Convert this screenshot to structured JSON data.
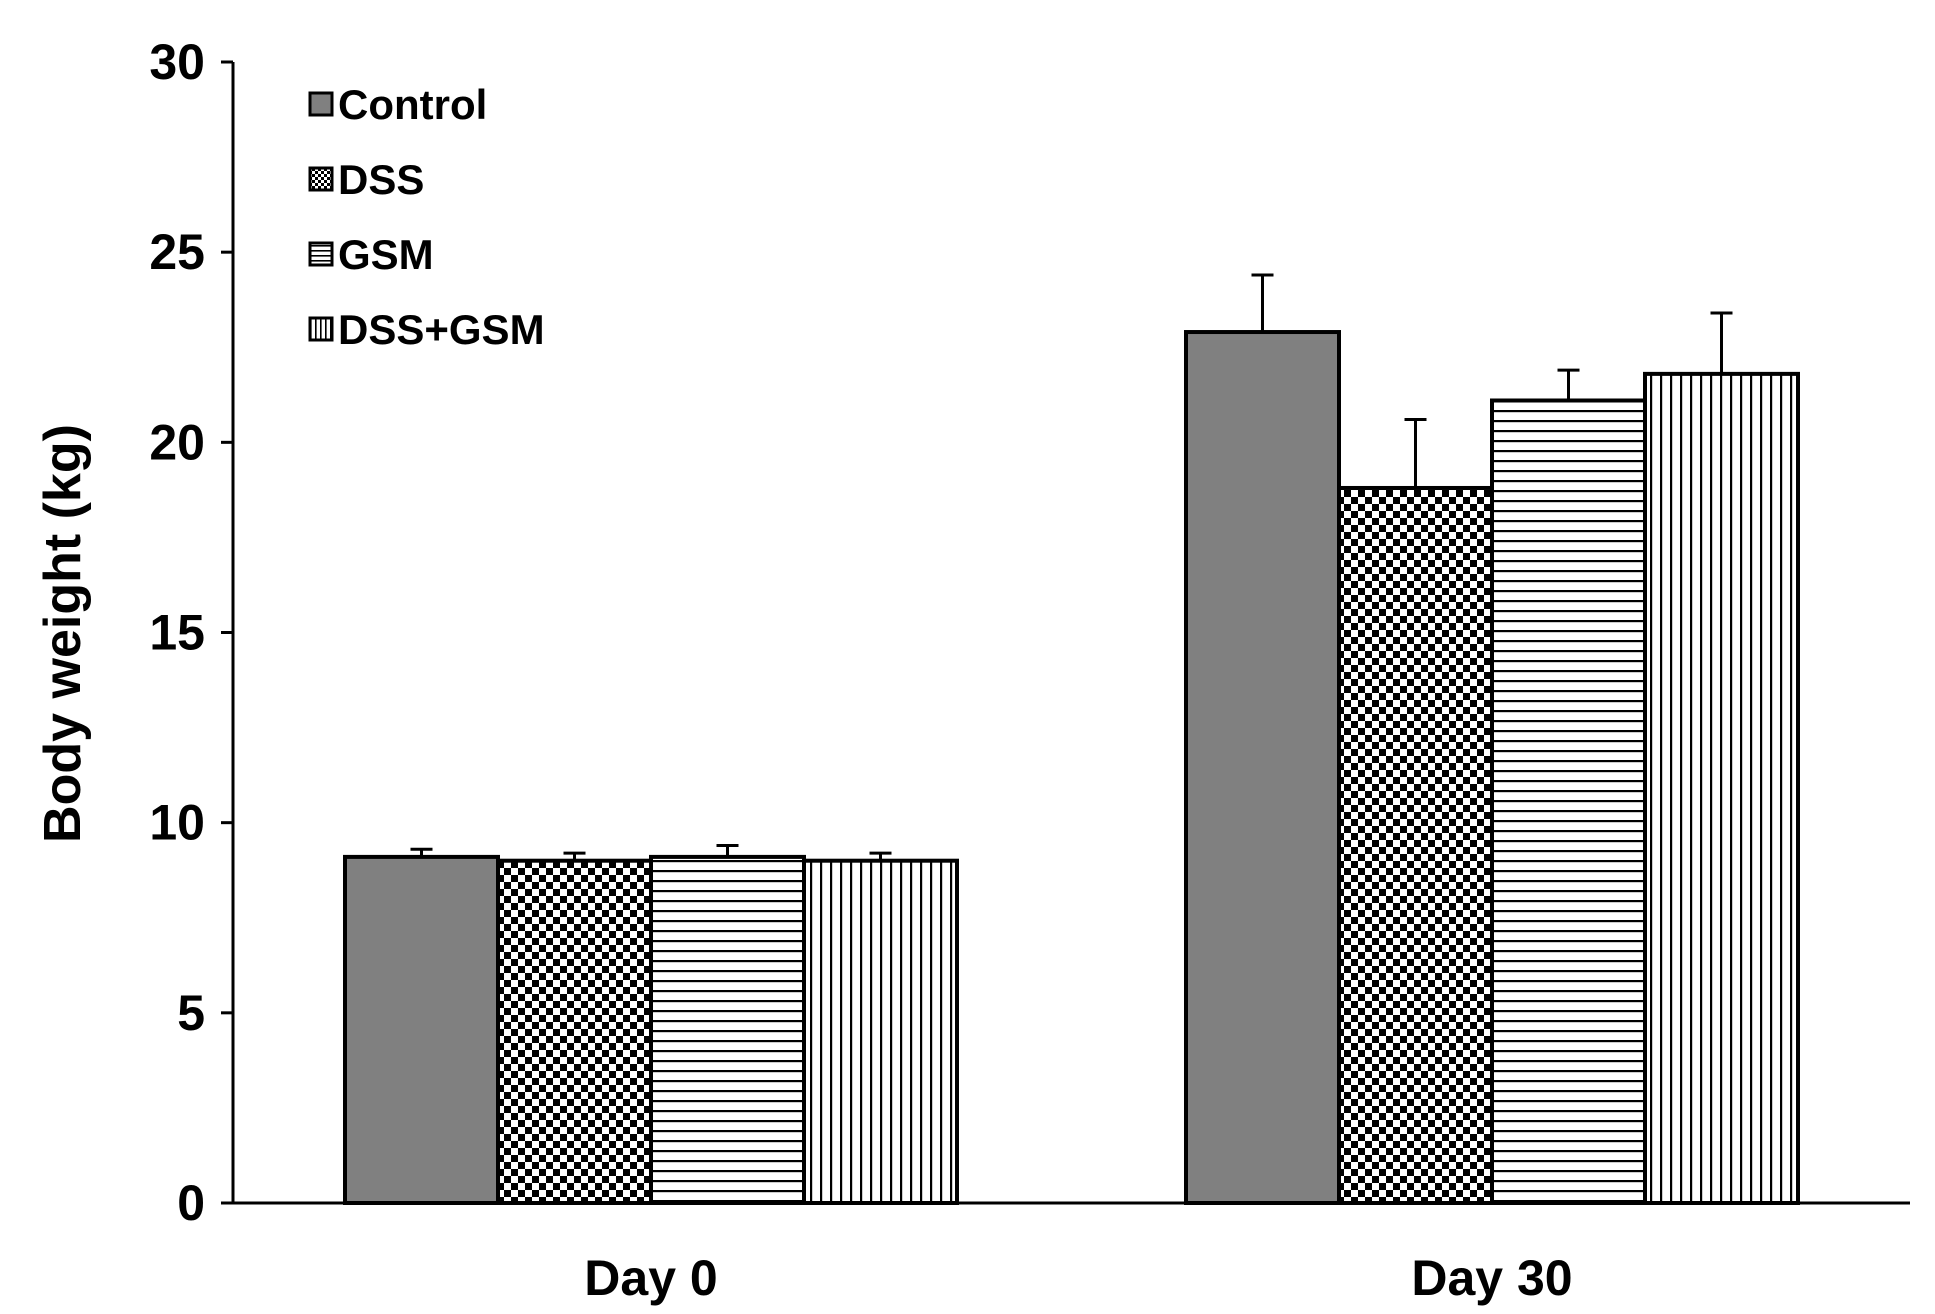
{
  "chart_data": {
    "type": "bar",
    "title": "",
    "xlabel": "",
    "ylabel": "Body weight (kg)",
    "ylim": [
      0,
      30
    ],
    "yticks": [
      "0",
      "5",
      "10",
      "15",
      "20",
      "25",
      "30"
    ],
    "categories": [
      "Day 0",
      "Day 30"
    ],
    "series": [
      {
        "name": "Control",
        "pattern": "solid-gray",
        "values": [
          9.1,
          22.9
        ],
        "errors": [
          0.2,
          1.5
        ]
      },
      {
        "name": "DSS",
        "pattern": "checkerboard",
        "values": [
          9.0,
          18.8
        ],
        "errors": [
          0.2,
          1.8
        ]
      },
      {
        "name": "GSM",
        "pattern": "horizontal-lines",
        "values": [
          9.1,
          21.1
        ],
        "errors": [
          0.3,
          0.8
        ]
      },
      {
        "name": "DSS+GSM",
        "pattern": "vertical-lines",
        "values": [
          9.0,
          21.8
        ],
        "errors": [
          0.2,
          1.6
        ]
      }
    ],
    "legend_position": "top-left",
    "grid": false
  },
  "colors": {
    "control_fill": "#808080",
    "stroke": "#000000",
    "background": "#ffffff"
  }
}
